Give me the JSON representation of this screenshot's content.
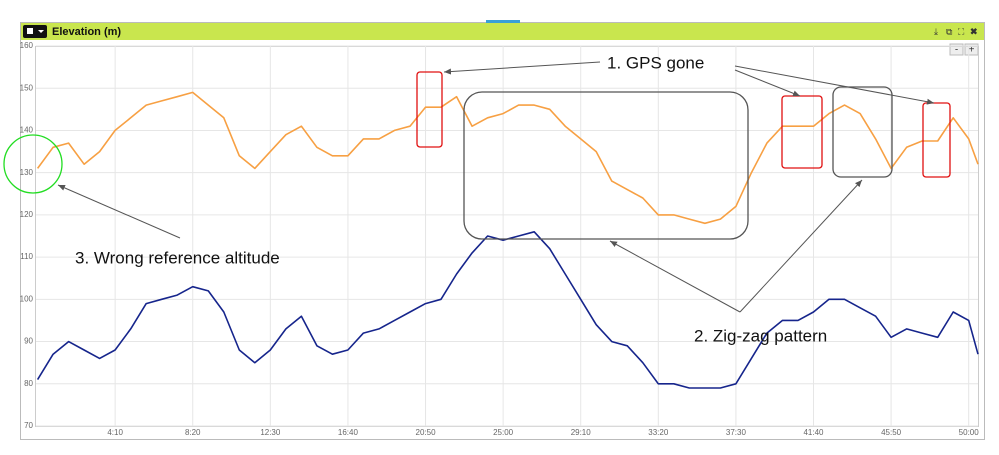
{
  "chart_data": {
    "type": "line",
    "title": "Elevation (m)",
    "zoom_out": "-",
    "zoom_in": "+",
    "annotations": [
      "1. GPS gone",
      "2. Zig-zag pattern",
      "3. Wrong reference altitude"
    ],
    "x": [
      0,
      50,
      100,
      150,
      200,
      250,
      300,
      350,
      400,
      450,
      500,
      550,
      600,
      650,
      700,
      750,
      800,
      850,
      900,
      950,
      1000,
      1050,
      1100,
      1150,
      1200,
      1250,
      1300,
      1350,
      1400,
      1450,
      1500,
      1550,
      1600,
      1650,
      1700,
      1750,
      1800,
      1850,
      1900,
      1950,
      2000,
      2050,
      2100,
      2150,
      2200,
      2250,
      2300,
      2350,
      2400,
      2450,
      2500,
      2550,
      2600,
      2650,
      2700,
      2750,
      2800,
      2850,
      2900,
      2950,
      3000,
      3030
    ],
    "series": [
      {
        "color": "#f7a043",
        "values": [
          131,
          136,
          137,
          132,
          135,
          140,
          143,
          146,
          147,
          148,
          149,
          146,
          143,
          134,
          131,
          135,
          139,
          141,
          136,
          134,
          134,
          138,
          138,
          140,
          141,
          145.5,
          145.5,
          148,
          141,
          143,
          144,
          146,
          146,
          145,
          141,
          138,
          135,
          128,
          126,
          124,
          120,
          120,
          119,
          118,
          119,
          122,
          130,
          137,
          141,
          141,
          141,
          144,
          146,
          144,
          138,
          131,
          136,
          137.5,
          137.5,
          143,
          138,
          132
        ]
      },
      {
        "color": "#16258c",
        "values": [
          81,
          87,
          90,
          88,
          86,
          88,
          93,
          99,
          100,
          101,
          103,
          102,
          97,
          88,
          85,
          88,
          93,
          96,
          89,
          87,
          88,
          92,
          93,
          95,
          97,
          99,
          100,
          106,
          111,
          115,
          114,
          115,
          116,
          112,
          106,
          100,
          94,
          90,
          89,
          85,
          80,
          80,
          79,
          79,
          79,
          80,
          86,
          92,
          95,
          95,
          97,
          100,
          100,
          98,
          96,
          91,
          93,
          92,
          91,
          97,
          95,
          87
        ]
      }
    ],
    "xlim": [
      -5,
      3030
    ],
    "xticks": [
      {
        "value": 250,
        "label": "4:10"
      },
      {
        "value": 500,
        "label": "8:20"
      },
      {
        "value": 750,
        "label": "12:30"
      },
      {
        "value": 1000,
        "label": "16:40"
      },
      {
        "value": 1250,
        "label": "20:50"
      },
      {
        "value": 1500,
        "label": "25:00"
      },
      {
        "value": 1750,
        "label": "29:10"
      },
      {
        "value": 2000,
        "label": "33:20"
      },
      {
        "value": 2250,
        "label": "37:30"
      },
      {
        "value": 2500,
        "label": "41:40"
      },
      {
        "value": 2750,
        "label": "45:50"
      },
      {
        "value": 3000,
        "label": "50:00"
      }
    ],
    "ylim": [
      70,
      160
    ],
    "yticks": [
      70,
      80,
      90,
      100,
      110,
      120,
      130,
      140,
      150,
      160
    ],
    "grid": true
  }
}
